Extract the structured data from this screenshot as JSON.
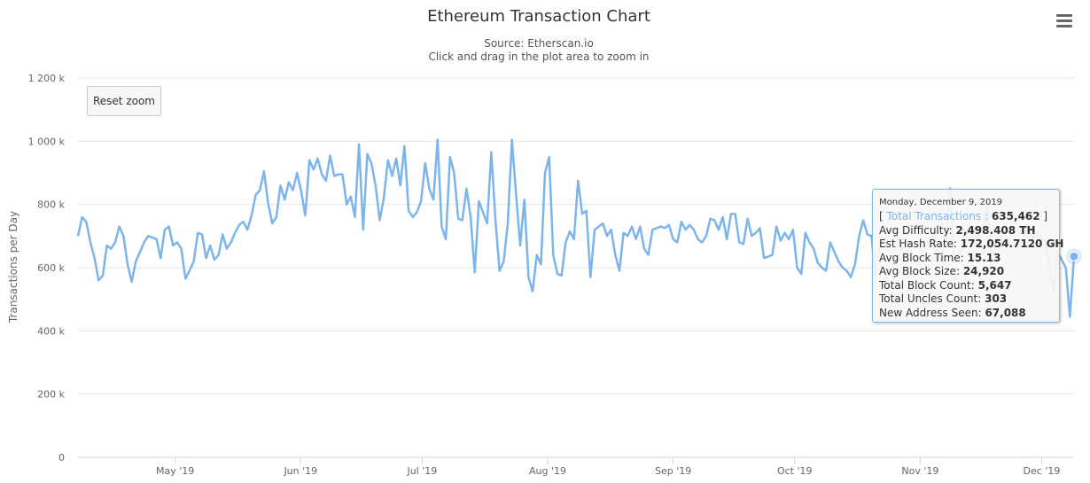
{
  "title": "Ethereum Transaction Chart",
  "subtitle_source": "Source: Etherscan.io",
  "subtitle_hint": "Click and drag in the plot area to zoom in",
  "reset_zoom_label": "Reset zoom",
  "menu_icon": "hamburger-menu-icon",
  "colors": {
    "series": "#7cb5ec",
    "grid": "#e6e6e6",
    "axis_text": "#666666"
  },
  "tooltip": {
    "date": "Monday, December 9, 2019",
    "open_bracket": "[",
    "series_name": "Total Transactions",
    "sep": " : ",
    "value": "635,462",
    "close_bracket": "]",
    "rows": [
      {
        "label": "Avg Difficulty: ",
        "value": "2,498.408 TH"
      },
      {
        "label": "Est Hash Rate: ",
        "value": "172,054.7120 GH"
      },
      {
        "label": "Avg Block Time: ",
        "value": "15.13"
      },
      {
        "label": "Avg Block Size: ",
        "value": "24,920"
      },
      {
        "label": "Total Block Count: ",
        "value": "5,647"
      },
      {
        "label": "Total Uncles Count: ",
        "value": "303"
      },
      {
        "label": "New Address Seen: ",
        "value": "67,088"
      }
    ]
  },
  "chart_data": {
    "type": "line",
    "ylabel": "Transactions per Day",
    "ylim": [
      0,
      1200000
    ],
    "yticks": [
      0,
      200000,
      400000,
      600000,
      800000,
      1000000,
      1200000
    ],
    "ytick_labels": [
      "0",
      "200 k",
      "400 k",
      "600 k",
      "800 k",
      "1 000 k",
      "1 200 k"
    ],
    "x_start": "2019-04-07",
    "x_end": "2019-12-09",
    "xtick_dates": [
      "2019-05-01",
      "2019-06-01",
      "2019-07-01",
      "2019-08-01",
      "2019-09-01",
      "2019-10-01",
      "2019-11-01",
      "2019-12-01"
    ],
    "xtick_labels": [
      "May '19",
      "Jun '19",
      "Jul '19",
      "Aug '19",
      "Sep '19",
      "Oct '19",
      "Nov '19",
      "Dec '19"
    ],
    "legend": "none",
    "grid": true,
    "series": [
      {
        "values": [
          700000,
          760000,
          745000,
          680000,
          630000,
          560000,
          575000,
          670000,
          660000,
          680000,
          730000,
          700000,
          610000,
          555000,
          620000,
          650000,
          680000,
          700000,
          695000,
          690000,
          630000,
          720000,
          730000,
          670000,
          680000,
          660000,
          565000,
          590000,
          620000,
          710000,
          705000,
          630000,
          670000,
          625000,
          640000,
          705000,
          660000,
          680000,
          710000,
          735000,
          745000,
          720000,
          765000,
          830000,
          845000,
          905000,
          805000,
          740000,
          760000,
          860000,
          815000,
          870000,
          845000,
          900000,
          840000,
          765000,
          940000,
          910000,
          945000,
          895000,
          875000,
          955000,
          890000,
          895000,
          895000,
          800000,
          825000,
          760000,
          990000,
          720000,
          960000,
          930000,
          860000,
          750000,
          820000,
          940000,
          890000,
          945000,
          860000,
          985000,
          780000,
          760000,
          775000,
          810000,
          930000,
          850000,
          815000,
          1005000,
          730000,
          690000,
          950000,
          900000,
          755000,
          750000,
          850000,
          760000,
          585000,
          810000,
          775000,
          740000,
          965000,
          750000,
          590000,
          620000,
          740000,
          1005000,
          830000,
          670000,
          815000,
          570000,
          525000,
          640000,
          610000,
          900000,
          950000,
          640000,
          580000,
          575000,
          680000,
          715000,
          690000,
          875000,
          770000,
          780000,
          570000,
          720000,
          730000,
          740000,
          700000,
          720000,
          640000,
          590000,
          710000,
          700000,
          730000,
          690000,
          730000,
          660000,
          640000,
          720000,
          725000,
          730000,
          725000,
          735000,
          690000,
          680000,
          745000,
          720000,
          735000,
          720000,
          690000,
          680000,
          700000,
          755000,
          750000,
          720000,
          760000,
          690000,
          770000,
          770000,
          680000,
          675000,
          755000,
          700000,
          710000,
          725000,
          630000,
          635000,
          640000,
          730000,
          685000,
          710000,
          690000,
          720000,
          600000,
          580000,
          710000,
          680000,
          660000,
          615000,
          600000,
          590000,
          680000,
          650000,
          620000,
          600000,
          590000,
          570000,
          610000,
          700000,
          750000,
          705000,
          700000,
          570000,
          670000,
          690000,
          700000,
          730000,
          710000,
          670000,
          640000,
          660000,
          640000,
          610000,
          660000,
          680000,
          690000,
          710000,
          650000,
          620000,
          690000,
          850000,
          620000,
          640000,
          660000,
          710000,
          735000,
          700000,
          690000,
          720000,
          810000,
          610000,
          690000,
          700000,
          680000,
          690000,
          700000,
          700000,
          710000,
          700000,
          720000,
          690000,
          710000,
          700000,
          680000,
          610000,
          530000,
          650000,
          625000,
          600000,
          445000,
          635462
        ]
      }
    ],
    "highlight": {
      "date": "2019-12-09",
      "value": 635462
    }
  }
}
